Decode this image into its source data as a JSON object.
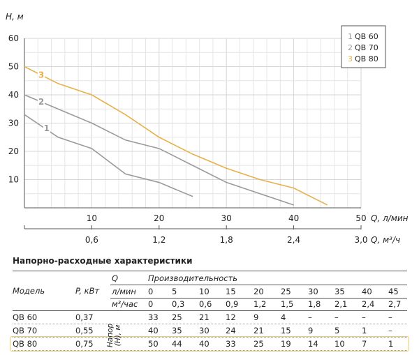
{
  "chart_data": {
    "type": "line",
    "ylabel": "H, м",
    "xlabel": "Q, л/мин",
    "x2label": "Q, м³/ч",
    "xlim": [
      0,
      50
    ],
    "ylim": [
      0,
      60
    ],
    "xticks": [
      10,
      20,
      30,
      40,
      50
    ],
    "x2ticks": [
      "0,6",
      "1,2",
      "1,8",
      "2,4",
      "3,0"
    ],
    "yticks": [
      10,
      20,
      30,
      40,
      50,
      60
    ],
    "grid": true,
    "legend_position": "top-right",
    "series": [
      {
        "name": "QB 60",
        "label": "1",
        "color": "#9a9a9a",
        "x": [
          0,
          5,
          10,
          15,
          20,
          25
        ],
        "y": [
          33,
          25,
          21,
          12,
          9,
          4
        ]
      },
      {
        "name": "QB 70",
        "label": "2",
        "color": "#9a9a9a",
        "x": [
          0,
          5,
          10,
          15,
          20,
          25,
          30,
          35,
          40
        ],
        "y": [
          40,
          35,
          30,
          24,
          21,
          15,
          9,
          5,
          1
        ]
      },
      {
        "name": "QB 80",
        "label": "3",
        "color": "#e8b04a",
        "x": [
          0,
          5,
          10,
          15,
          20,
          25,
          30,
          35,
          40,
          45
        ],
        "y": [
          50,
          44,
          40,
          33,
          25,
          19,
          14,
          10,
          7,
          1
        ]
      }
    ]
  },
  "table": {
    "title": "Напорно-расходные характеристики",
    "q_label": "Q",
    "perf_label": "Производительность",
    "model_label": "Модель",
    "power_label": "P, кВт",
    "lmin_label": "л/мин",
    "m3_label": "м³/час",
    "head_label": "Напор (H), м",
    "lmin": [
      "0",
      "5",
      "10",
      "15",
      "20",
      "25",
      "30",
      "35",
      "40",
      "45"
    ],
    "m3": [
      "0",
      "0,3",
      "0,6",
      "0,9",
      "1,2",
      "1,5",
      "1,8",
      "2,1",
      "2,4",
      "2,7"
    ],
    "rows": [
      {
        "model": "QB 60",
        "power": "0,37",
        "values": [
          "33",
          "25",
          "21",
          "12",
          "9",
          "4",
          "–",
          "–",
          "–",
          "–"
        ]
      },
      {
        "model": "QB 70",
        "power": "0,55",
        "values": [
          "40",
          "35",
          "30",
          "24",
          "21",
          "15",
          "9",
          "5",
          "1",
          "–"
        ]
      },
      {
        "model": "QB 80",
        "power": "0,75",
        "values": [
          "50",
          "44",
          "40",
          "33",
          "25",
          "19",
          "14",
          "10",
          "7",
          "1"
        ],
        "highlighted": true
      }
    ]
  }
}
